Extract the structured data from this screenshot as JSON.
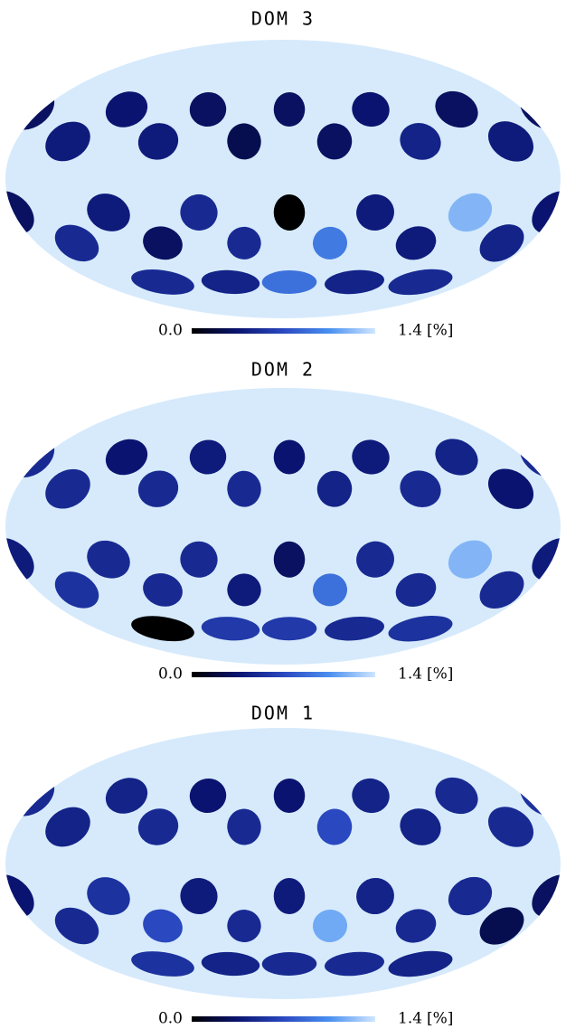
{
  "panels": [
    {
      "title": "DOM 3",
      "spots": [
        0.3,
        0.35,
        0.3,
        0.3,
        0.35,
        0.3,
        0.3,
        0.4,
        0.4,
        0.25,
        0.3,
        0.45,
        0.4,
        0.3,
        0.4,
        0.5,
        0.0,
        0.4,
        1.2,
        0.35,
        0.5,
        0.3,
        0.5,
        0.95,
        0.4,
        0.45,
        0.5,
        0.5,
        0.45,
        0.9,
        0.45,
        0.5,
        0.5
      ]
    },
    {
      "title": "DOM 2",
      "spots": [
        0.5,
        0.35,
        0.4,
        0.35,
        0.4,
        0.45,
        0.5,
        0.5,
        0.5,
        0.5,
        0.45,
        0.5,
        0.35,
        0.4,
        0.5,
        0.5,
        0.3,
        0.5,
        1.2,
        0.4,
        0.55,
        0.5,
        0.4,
        0.9,
        0.5,
        0.5,
        0.55,
        0.0,
        0.6,
        0.6,
        0.5,
        0.55,
        0.55
      ]
    },
    {
      "title": "DOM 1",
      "spots": [
        0.5,
        0.45,
        0.35,
        0.35,
        0.45,
        0.5,
        0.55,
        0.45,
        0.5,
        0.5,
        0.7,
        0.45,
        0.5,
        0.35,
        0.55,
        0.4,
        0.4,
        0.45,
        0.5,
        0.3,
        0.5,
        0.7,
        0.5,
        1.15,
        0.5,
        0.25,
        0.5,
        0.55,
        0.45,
        0.5,
        0.5,
        0.45,
        0.4
      ]
    }
  ],
  "colorbar": {
    "range": [
      0,
      1.4
    ],
    "ticks": [
      {
        "value": 0,
        "label": "0.0"
      },
      1.4
    ],
    "unit": "[%]",
    "colormap": [
      "#000000",
      "#0a1470",
      "#2a48c0",
      "#4a90f0",
      "#cfe6ff"
    ]
  },
  "background_color": "#d6eafc"
}
